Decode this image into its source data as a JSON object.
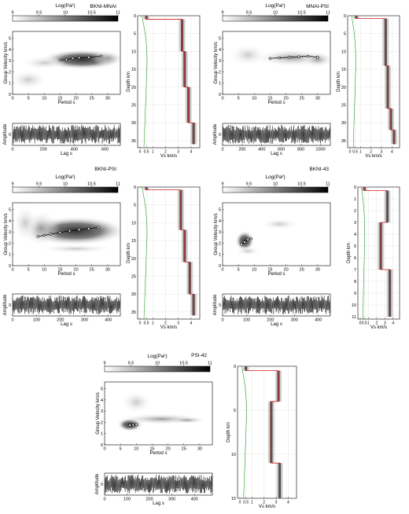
{
  "colorbar_title": "Log(Pa²)",
  "colorbar_ticks": [
    "9",
    "9.5",
    "10",
    "10.5",
    "11"
  ],
  "axis_labels": {
    "period": "Period s",
    "group_velocity": "Group Velocity km/s",
    "amplitude": "Amplitude",
    "lag": "Lag s",
    "depth": "Depth km",
    "vs": "Vs km/s"
  },
  "vs_ticks": [
    "0",
    "0.5",
    "1",
    "2",
    "3",
    "4"
  ],
  "panels": [
    {
      "title": "BKNI-MNAI",
      "period_ticks": [
        "0",
        "5",
        "10",
        "15",
        "20",
        "25",
        "30"
      ],
      "velocity_ticks": [
        "0",
        "1",
        "2",
        "3",
        "4",
        "5"
      ],
      "lag_ticks": [
        "0",
        "200",
        "400",
        "600"
      ],
      "amp_ticks": [
        "0"
      ],
      "depth_ticks": [
        "0",
        "5",
        "10",
        "15",
        "20",
        "25",
        "30",
        "35"
      ]
    },
    {
      "title": "MNAI-PSI",
      "period_ticks": [
        "0",
        "5",
        "10",
        "15",
        "20",
        "25",
        "30"
      ],
      "velocity_ticks": [
        "0",
        "1",
        "2",
        "3",
        "4",
        "5"
      ],
      "lag_ticks": [
        "0",
        "200",
        "400",
        "600",
        "800",
        "1000"
      ],
      "amp_ticks": [
        "0"
      ],
      "depth_ticks": [
        "0",
        "5",
        "10",
        "15",
        "20",
        "25",
        "30",
        "35"
      ]
    },
    {
      "title": "BKNI-PSI",
      "period_ticks": [
        "0",
        "5",
        "10",
        "15",
        "20",
        "25",
        "30"
      ],
      "velocity_ticks": [
        "0",
        "1",
        "2",
        "3",
        "4",
        "5"
      ],
      "lag_ticks": [
        "0",
        "100",
        "200",
        "300",
        "400"
      ],
      "amp_ticks": [
        "0"
      ],
      "depth_ticks": [
        "0",
        "5",
        "10",
        "15",
        "20",
        "25",
        "30",
        "35"
      ]
    },
    {
      "title": "BKNI-43",
      "period_ticks": [
        "0",
        "5",
        "10",
        "15",
        "20",
        "25",
        "30"
      ],
      "velocity_ticks": [
        "0",
        "1",
        "2",
        "3",
        "4",
        "5"
      ],
      "lag_ticks": [
        "0",
        "100",
        "200",
        "300",
        "400"
      ],
      "amp_ticks": [
        "0"
      ],
      "depth_ticks": [
        "0",
        "1",
        "2",
        "3",
        "4",
        "5",
        "6",
        "7",
        "8",
        "9",
        "10",
        "11"
      ]
    },
    {
      "title": "PSI-42",
      "period_ticks": [
        "0",
        "5",
        "10",
        "15",
        "20",
        "25",
        "30"
      ],
      "velocity_ticks": [
        "0",
        "1",
        "2",
        "3",
        "4",
        "5"
      ],
      "lag_ticks": [
        "0",
        "100",
        "200",
        "300",
        "400"
      ],
      "amp_ticks": [
        "0"
      ],
      "depth_ticks": [
        "0",
        "5",
        "10",
        "15"
      ]
    }
  ]
}
